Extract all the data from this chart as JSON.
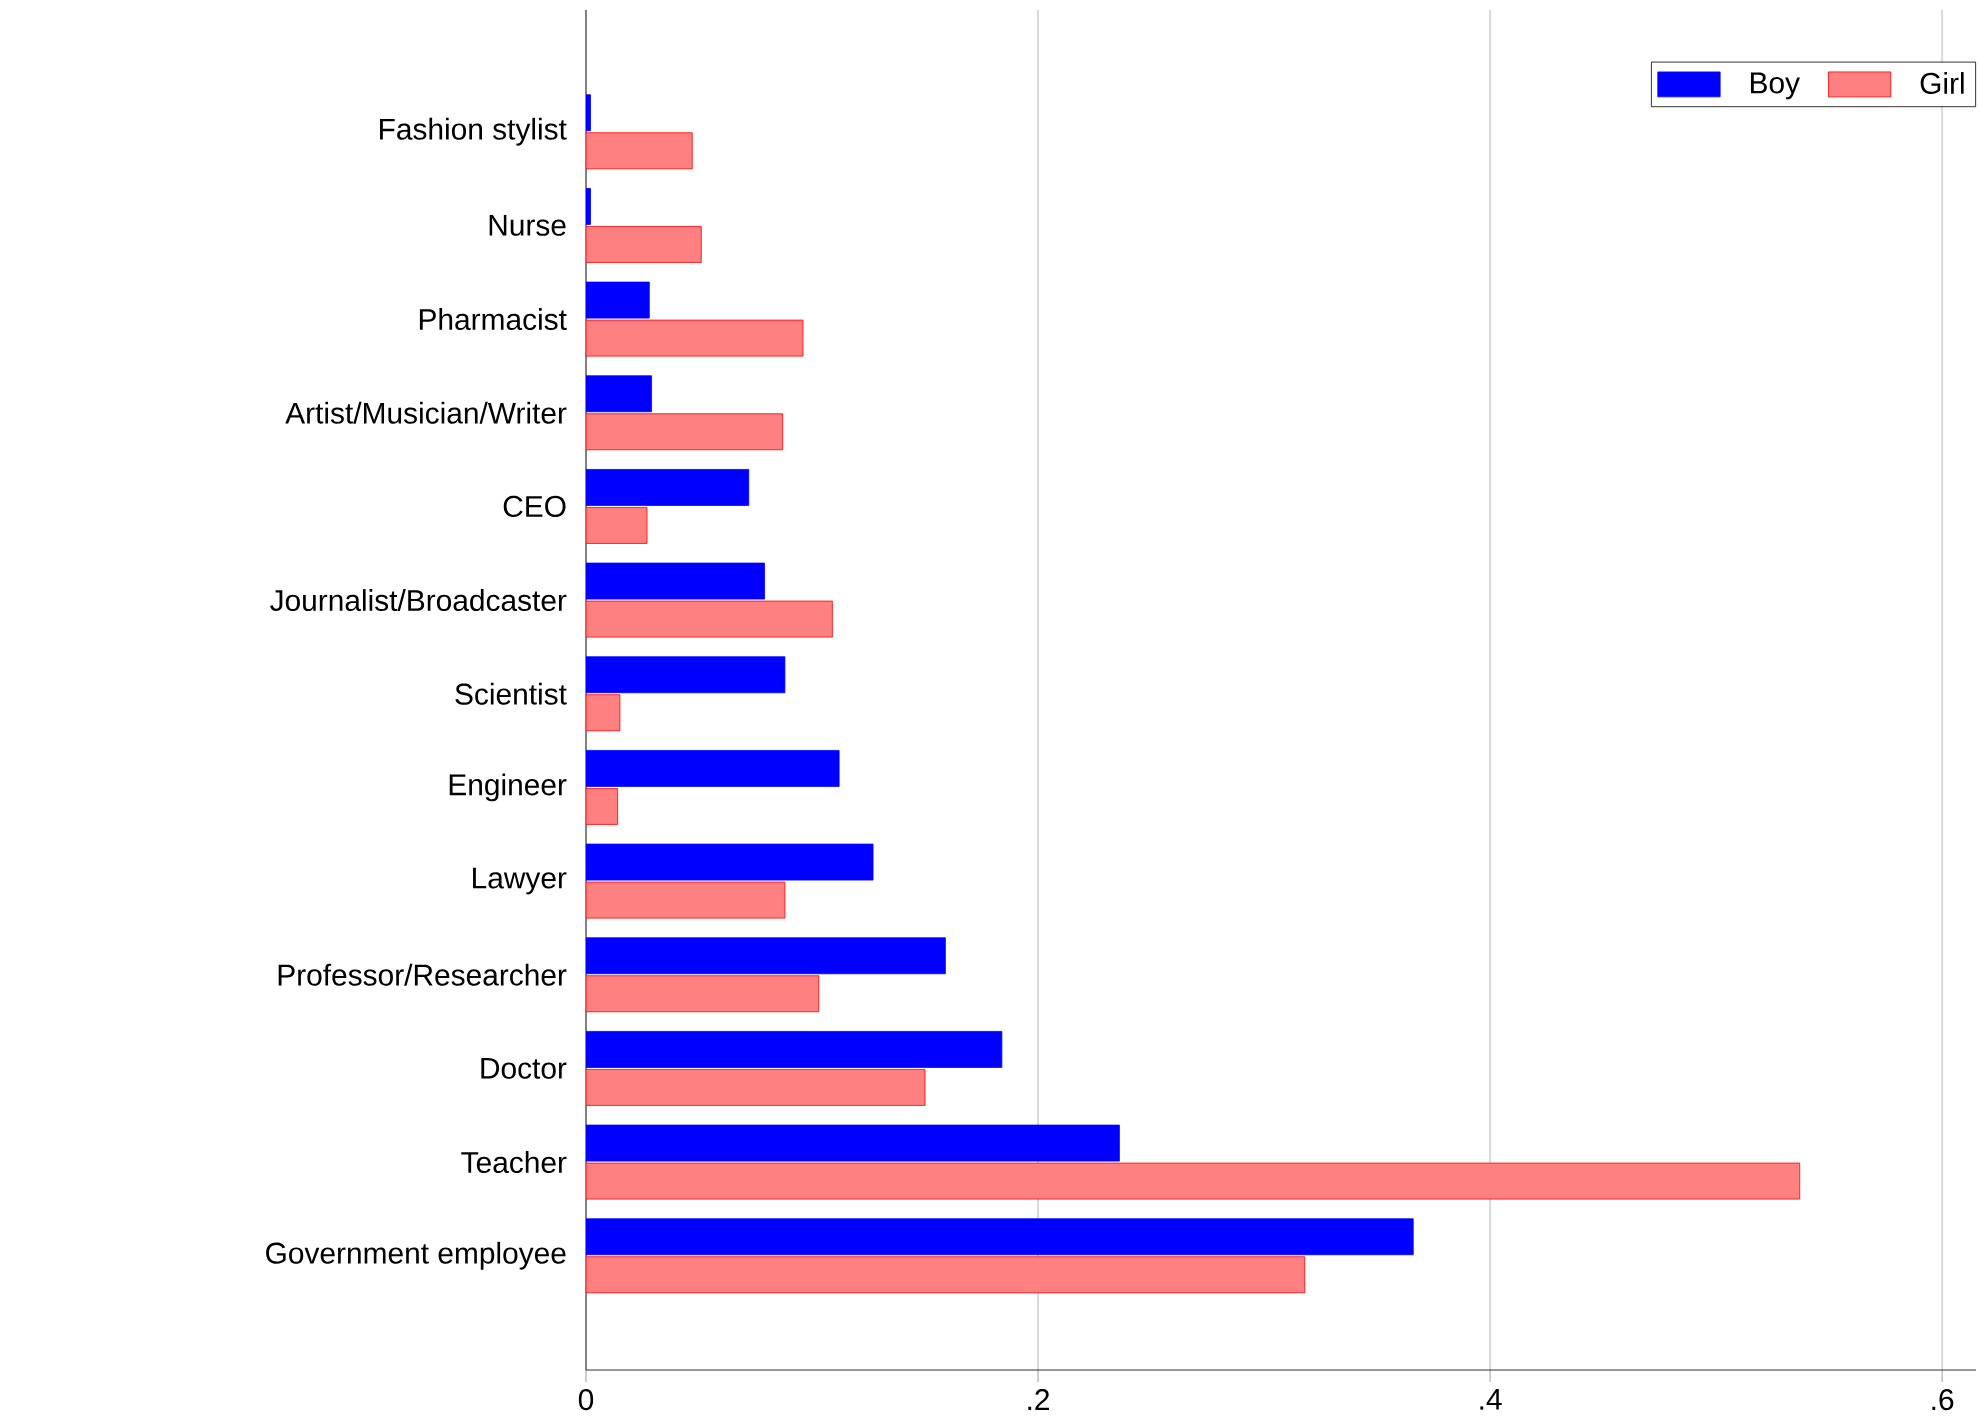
{
  "chart_data": {
    "type": "bar",
    "orientation": "horizontal",
    "categories": [
      "Fashion stylist",
      "Nurse",
      "Pharmacist",
      "Artist/Musician/Writer",
      "CEO",
      "Journalist/Broadcaster",
      "Scientist",
      "Engineer",
      "Lawyer",
      "Professor/Researcher",
      "Doctor",
      "Teacher",
      "Government employee"
    ],
    "series": [
      {
        "name": "Boy",
        "color": "#0000ff",
        "values": [
          0.002,
          0.002,
          0.028,
          0.029,
          0.072,
          0.079,
          0.088,
          0.112,
          0.127,
          0.159,
          0.184,
          0.236,
          0.366
        ]
      },
      {
        "name": "Girl",
        "color": "#ff8080",
        "values": [
          0.047,
          0.051,
          0.096,
          0.087,
          0.027,
          0.109,
          0.015,
          0.014,
          0.088,
          0.103,
          0.15,
          0.537,
          0.318
        ]
      }
    ],
    "xlim": [
      0,
      0.615
    ],
    "xticks": [
      0,
      {
        "value": 0.2,
        "label": ".2"
      },
      {
        "value": 0.4,
        "label": ".4"
      },
      {
        "value": 0.6,
        "label": ".6"
      }
    ],
    "grid": "x",
    "legend": "top right"
  }
}
